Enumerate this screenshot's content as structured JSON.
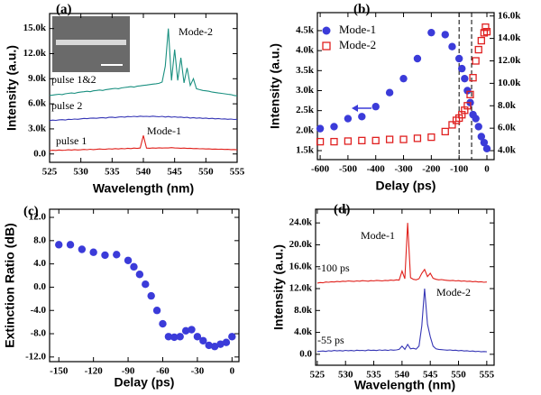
{
  "chart_data": [
    {
      "type": "line",
      "label": "(a)",
      "xlabel": "Wavelength (nm)",
      "ylabel": "Intensity (a.u.)",
      "xlim": [
        525,
        555
      ],
      "xticks": [
        525,
        530,
        535,
        540,
        545,
        550,
        555
      ],
      "ylim": [
        -1000,
        16800
      ],
      "yticks": [
        {
          "value": 0,
          "label": "0.0"
        },
        {
          "value": 3000,
          "label": "3.0k"
        },
        {
          "value": 6000,
          "label": "6.0k"
        },
        {
          "value": 9000,
          "label": "9.0k"
        },
        {
          "value": 12000,
          "label": "12.0k"
        },
        {
          "value": 15000,
          "label": "15.0k"
        }
      ],
      "annotations": [
        "Mode-2",
        "Mode-1"
      ],
      "x": [
        525,
        525.5,
        526,
        526.5,
        527,
        527.5,
        528,
        528.5,
        529,
        529.5,
        530,
        530.5,
        531,
        531.5,
        532,
        532.5,
        533,
        533.5,
        534,
        534.5,
        535,
        535.5,
        536,
        536.5,
        537,
        537.5,
        538,
        538.5,
        539,
        539.5,
        540,
        540.5,
        541,
        541.5,
        542,
        542.5,
        543,
        543.5,
        544,
        544.5,
        545,
        545.5,
        546,
        546.5,
        547,
        547.5,
        548,
        548.5,
        549,
        549.5,
        550,
        550.5,
        551,
        551.5,
        552,
        552.5,
        553,
        553.5,
        554,
        554.5,
        555
      ],
      "series": [
        {
          "name": "pulse 1&2",
          "color": "#1a9080",
          "values": [
            7000,
            7050,
            7100,
            7150,
            7100,
            7200,
            7250,
            7300,
            7250,
            7350,
            7400,
            7450,
            7500,
            7450,
            7550,
            7600,
            7650,
            7600,
            7700,
            7750,
            7800,
            7850,
            7800,
            7900,
            7950,
            8000,
            8050,
            8000,
            8100,
            8150,
            8200,
            8250,
            8300,
            8350,
            8400,
            8450,
            8600,
            10500,
            15000,
            8800,
            12500,
            8800,
            11500,
            8500,
            10300,
            8200,
            9000,
            7800,
            7700,
            7600,
            7550,
            7500,
            7400,
            7350,
            7300,
            7250,
            7200,
            7150,
            7100,
            7000,
            6950
          ]
        },
        {
          "name": "pulse 2",
          "color": "#3535b5",
          "values": [
            4000,
            4050,
            4020,
            4080,
            4100,
            4060,
            4150,
            4120,
            4180,
            4150,
            4200,
            4250,
            4220,
            4280,
            4300,
            4260,
            4320,
            4350,
            4300,
            4380,
            4400,
            4350,
            4420,
            4450,
            4400,
            4480,
            4450,
            4500,
            4460,
            4520,
            4480,
            4500,
            4470,
            4520,
            4480,
            4450,
            4500,
            4420,
            4480,
            4400,
            4450,
            4380,
            4420,
            4350,
            4380,
            4300,
            4350,
            4280,
            4320,
            4250,
            4300,
            4220,
            4260,
            4200,
            4240,
            4180,
            4200,
            4150,
            4180,
            4120,
            4150
          ]
        },
        {
          "name": "pulse 1",
          "color": "#e0201b",
          "values": [
            400,
            450,
            420,
            480,
            430,
            460,
            500,
            470,
            520,
            480,
            500,
            540,
            510,
            560,
            520,
            550,
            600,
            560,
            580,
            620,
            590,
            640,
            600,
            650,
            620,
            680,
            640,
            700,
            660,
            720,
            2200,
            700,
            680,
            720,
            690,
            740,
            700,
            730,
            710,
            760,
            720,
            700,
            680,
            700,
            660,
            680,
            640,
            650,
            620,
            630,
            600,
            610,
            580,
            590,
            560,
            570,
            540,
            550,
            520,
            530,
            500
          ]
        }
      ]
    },
    {
      "type": "scatter",
      "label": "(b)",
      "xlabel": "Delay (ps)",
      "ylabel": "Intensity (a.u.)",
      "legend": "upper left",
      "xlim": [
        -610,
        26
      ],
      "xticks": [
        -600,
        -500,
        -400,
        -300,
        -200,
        -100,
        0
      ],
      "ylim": [
        1275,
        4950
      ],
      "yticks": [
        {
          "value": 1500,
          "label": "1.5k"
        },
        {
          "value": 2000,
          "label": "2.0k"
        },
        {
          "value": 2500,
          "label": "2.5k"
        },
        {
          "value": 3000,
          "label": "3.0k"
        },
        {
          "value": 3500,
          "label": "3.5k"
        },
        {
          "value": 4000,
          "label": "4.0k"
        },
        {
          "value": 4500,
          "label": "4.5k"
        }
      ],
      "y2lim": [
        3200,
        16300
      ],
      "y2ticks": [
        {
          "value": 4000,
          "label": "4.0k"
        },
        {
          "value": 6000,
          "label": "6.0k"
        },
        {
          "value": 8000,
          "label": "8.0k"
        },
        {
          "value": 10000,
          "label": "10.0k"
        },
        {
          "value": 12000,
          "label": "12.0k"
        },
        {
          "value": 14000,
          "label": "14.0k"
        },
        {
          "value": 16000,
          "label": "16.0k"
        }
      ],
      "vlines": [
        -100,
        -55
      ],
      "series": [
        {
          "name": "Mode-1",
          "color": "#3b3bd9",
          "marker": "circle",
          "x": [
            -600,
            -550,
            -500,
            -450,
            -400,
            -350,
            -300,
            -250,
            -200,
            -150,
            -125,
            -100,
            -90,
            -80,
            -70,
            -60,
            -50,
            -40,
            -30,
            -20,
            -10,
            0
          ],
          "values": [
            2050,
            2100,
            2300,
            2350,
            2600,
            2950,
            3300,
            3800,
            4450,
            4400,
            4100,
            3800,
            3550,
            3300,
            3000,
            2700,
            2400,
            2300,
            2100,
            1850,
            1700,
            1550
          ]
        },
        {
          "name": "Mode-2",
          "color": "#e02020",
          "marker": "square",
          "axis": "y2",
          "x": [
            -600,
            -550,
            -500,
            -450,
            -400,
            -350,
            -300,
            -250,
            -200,
            -150,
            -125,
            -110,
            -100,
            -90,
            -80,
            -70,
            -60,
            -50,
            -40,
            -30,
            -20,
            -10,
            -5,
            0
          ],
          "values": [
            4800,
            4800,
            4850,
            4900,
            4900,
            5000,
            5000,
            5100,
            5200,
            5700,
            6300,
            6700,
            6900,
            7200,
            7600,
            8000,
            9000,
            10500,
            12000,
            13000,
            13800,
            14500,
            15000,
            14600
          ]
        }
      ]
    },
    {
      "type": "scatter",
      "label": "(c)",
      "xlabel": "Delay (ps)",
      "ylabel": "Extinction Ratio (dB)",
      "xlim": [
        -158,
        6
      ],
      "xticks": [
        -150,
        -120,
        -90,
        -60,
        -30,
        0
      ],
      "ylim": [
        -12.8,
        13.4
      ],
      "yticks": [
        {
          "value": -12,
          "label": "-12.0"
        },
        {
          "value": -8,
          "label": "-8.0"
        },
        {
          "value": -4,
          "label": "-4.0"
        },
        {
          "value": 0,
          "label": "0.0"
        },
        {
          "value": 4,
          "label": "4.0"
        },
        {
          "value": 8,
          "label": "8.0"
        },
        {
          "value": 12,
          "label": "12.0"
        }
      ],
      "x": [
        -150,
        -140,
        -130,
        -120,
        -110,
        -100,
        -90,
        -85,
        -80,
        -75,
        -70,
        -65,
        -60,
        -55,
        -50,
        -45,
        -40,
        -35,
        -30,
        -25,
        -20,
        -15,
        -10,
        -5,
        0
      ],
      "series": [
        {
          "color": "#3b3bd9",
          "marker": "circle",
          "values": [
            7.3,
            7.3,
            6.5,
            6.0,
            5.5,
            5.6,
            4.6,
            3.5,
            2.2,
            0.5,
            -1.5,
            -4.0,
            -6.3,
            -8.5,
            -8.6,
            -8.5,
            -7.5,
            -7.3,
            -8.5,
            -9.2,
            -10.0,
            -10.2,
            -9.8,
            -9.5,
            -8.5
          ]
        }
      ]
    },
    {
      "type": "line",
      "label": "(d)",
      "xlabel": "Wavelength (nm)",
      "ylabel": "Intensity (a.u.)",
      "xlim": [
        524.7,
        556.3
      ],
      "xticks": [
        525,
        530,
        535,
        540,
        545,
        550,
        555
      ],
      "ylim": [
        -2000,
        26500
      ],
      "yticks": [
        {
          "value": 0,
          "label": "0.0"
        },
        {
          "value": 4000,
          "label": "4.0k"
        },
        {
          "value": 8000,
          "label": "8.0k"
        },
        {
          "value": 12000,
          "label": "12.0k"
        },
        {
          "value": 16000,
          "label": "16.0k"
        },
        {
          "value": 20000,
          "label": "20.0k"
        },
        {
          "value": 24000,
          "label": "24.0k"
        }
      ],
      "annotations": [
        "Mode-1",
        "Mode-2"
      ],
      "x": [
        525,
        525.5,
        526,
        526.5,
        527,
        527.5,
        528,
        528.5,
        529,
        529.5,
        530,
        530.5,
        531,
        531.5,
        532,
        532.5,
        533,
        533.5,
        534,
        534.5,
        535,
        535.5,
        536,
        536.5,
        537,
        537.5,
        538,
        538.5,
        539,
        539.5,
        540,
        540.5,
        541,
        541.5,
        542,
        542.5,
        543,
        543.5,
        544,
        544.5,
        545,
        545.5,
        546,
        546.5,
        547,
        547.5,
        548,
        548.5,
        549,
        549.5,
        550,
        550.5,
        551,
        551.5,
        552,
        552.5,
        553,
        553.5,
        554,
        554.5,
        555
      ],
      "series": [
        {
          "name": "-100 ps",
          "color": "#e0201b",
          "values": [
            13000,
            13100,
            13050,
            13200,
            13150,
            13250,
            13200,
            13300,
            13250,
            13350,
            13300,
            13400,
            13350,
            13300,
            13400,
            13350,
            13450,
            13400,
            13350,
            13450,
            13400,
            13500,
            13450,
            13400,
            13500,
            13450,
            13550,
            13500,
            13600,
            13550,
            15200,
            13800,
            24000,
            14000,
            13700,
            13600,
            13800,
            14800,
            15500,
            14200,
            14800,
            13900,
            13700,
            13600,
            13650,
            13550,
            13500,
            13450,
            13500,
            13400,
            13450,
            13350,
            13400,
            13300,
            13350,
            13250,
            13300,
            13200,
            13250,
            13150,
            13200
          ]
        },
        {
          "name": "-55 ps",
          "color": "#3535b5",
          "values": [
            500,
            550,
            600,
            520,
            650,
            580,
            700,
            620,
            680,
            600,
            720,
            650,
            700,
            620,
            750,
            680,
            720,
            650,
            780,
            700,
            750,
            680,
            800,
            720,
            780,
            700,
            820,
            750,
            800,
            900,
            1500,
            900,
            1800,
            1000,
            1100,
            950,
            1500,
            5200,
            12000,
            5500,
            3200,
            1500,
            1000,
            900,
            850,
            800,
            750,
            800,
            700,
            750,
            650,
            700,
            600,
            650,
            550,
            600,
            500,
            550,
            450,
            500,
            450
          ]
        }
      ]
    }
  ]
}
